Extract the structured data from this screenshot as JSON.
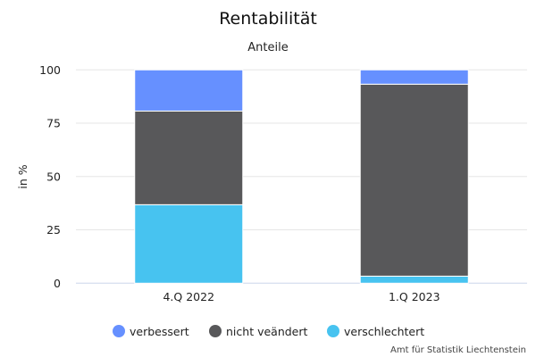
{
  "chart_data": {
    "type": "bar",
    "stacked": true,
    "title": "Rentabilität",
    "subtitle": "Anteile",
    "xlabel": "",
    "ylabel": "in %",
    "ylim": [
      0,
      100
    ],
    "yticks": [
      0,
      25,
      50,
      75,
      100
    ],
    "grid": true,
    "legend_position": "bottom",
    "categories": [
      "4.Q 2022",
      "1.Q 2023"
    ],
    "series": [
      {
        "name": "verbessert",
        "color": "#6690ff",
        "values": [
          19.3,
          6.7
        ]
      },
      {
        "name": "nicht veändert",
        "color": "#58585a",
        "values": [
          43.9,
          90.0
        ]
      },
      {
        "name": "verschlechtert",
        "color": "#47c3f0",
        "values": [
          36.8,
          3.3
        ]
      }
    ],
    "credits": "Amt für Statistik Liechtenstein"
  }
}
